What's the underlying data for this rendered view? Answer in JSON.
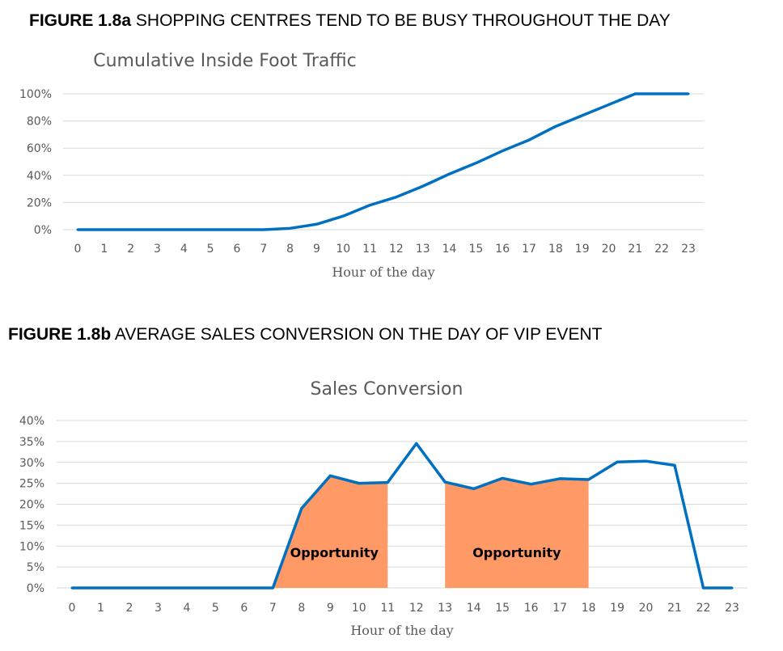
{
  "figures": [
    {
      "number": "FIGURE 1.8a",
      "caption": "SHOPPING CENTRES TEND TO BE BUSY THROUGHOUT THE DAY"
    },
    {
      "number": "FIGURE 1.8b",
      "caption": "AVERAGE SALES CONVERSION ON THE DAY OF VIP EVENT"
    }
  ],
  "chart_data": [
    {
      "type": "line",
      "title": "Cumulative Inside Foot Traffic",
      "xlabel": "Hour of the day",
      "ylabel": "",
      "x": [
        0,
        1,
        2,
        3,
        4,
        5,
        6,
        7,
        8,
        9,
        10,
        11,
        12,
        13,
        14,
        15,
        16,
        17,
        18,
        19,
        20,
        21,
        22,
        23
      ],
      "categories": [
        "0",
        "1",
        "2",
        "3",
        "4",
        "5",
        "6",
        "7",
        "8",
        "9",
        "10",
        "11",
        "12",
        "13",
        "14",
        "15",
        "16",
        "17",
        "18",
        "19",
        "20",
        "21",
        "22",
        "23"
      ],
      "series": [
        {
          "values": [
            0,
            0,
            0,
            0,
            0,
            0,
            0,
            0,
            1,
            4,
            10,
            18,
            24,
            32,
            41,
            49,
            58,
            66,
            76,
            84,
            92,
            100,
            100,
            100
          ]
        }
      ],
      "ylim": [
        0,
        100
      ],
      "yticks": [
        "0%",
        "20%",
        "40%",
        "60%",
        "80%",
        "100%"
      ],
      "ytick_values": [
        0,
        20,
        40,
        60,
        80,
        100
      ],
      "grid": true,
      "line_color": "#0070c0"
    },
    {
      "type": "line",
      "title": "Sales Conversion",
      "xlabel": "Hour of the day",
      "ylabel": "",
      "x": [
        0,
        1,
        2,
        3,
        4,
        5,
        6,
        7,
        8,
        9,
        10,
        11,
        12,
        13,
        14,
        15,
        16,
        17,
        18,
        19,
        20,
        21,
        22,
        23
      ],
      "categories": [
        "0",
        "1",
        "2",
        "3",
        "4",
        "5",
        "6",
        "7",
        "8",
        "9",
        "10",
        "11",
        "12",
        "13",
        "14",
        "15",
        "16",
        "17",
        "18",
        "19",
        "20",
        "21",
        "22",
        "23"
      ],
      "series": [
        {
          "values": [
            0,
            0,
            0,
            0,
            0,
            0,
            0,
            0,
            19,
            26.8,
            25,
            25.2,
            34.5,
            25.3,
            23.7,
            26.2,
            24.8,
            26.1,
            25.9,
            30.1,
            30.3,
            29.3,
            0,
            0
          ]
        }
      ],
      "ylim": [
        0,
        40
      ],
      "yticks": [
        "0%",
        "5%",
        "10%",
        "15%",
        "20%",
        "25%",
        "30%",
        "35%",
        "40%"
      ],
      "ytick_values": [
        0,
        5,
        10,
        15,
        20,
        25,
        30,
        35,
        40
      ],
      "grid": true,
      "line_color": "#0070c0",
      "shaded_regions": [
        {
          "label": "Opportunity",
          "x_start": 7,
          "x_end": 11,
          "color": "#ff9966"
        },
        {
          "label": "Opportunity",
          "x_start": 13,
          "x_end": 18,
          "color": "#ff9966"
        }
      ]
    }
  ]
}
